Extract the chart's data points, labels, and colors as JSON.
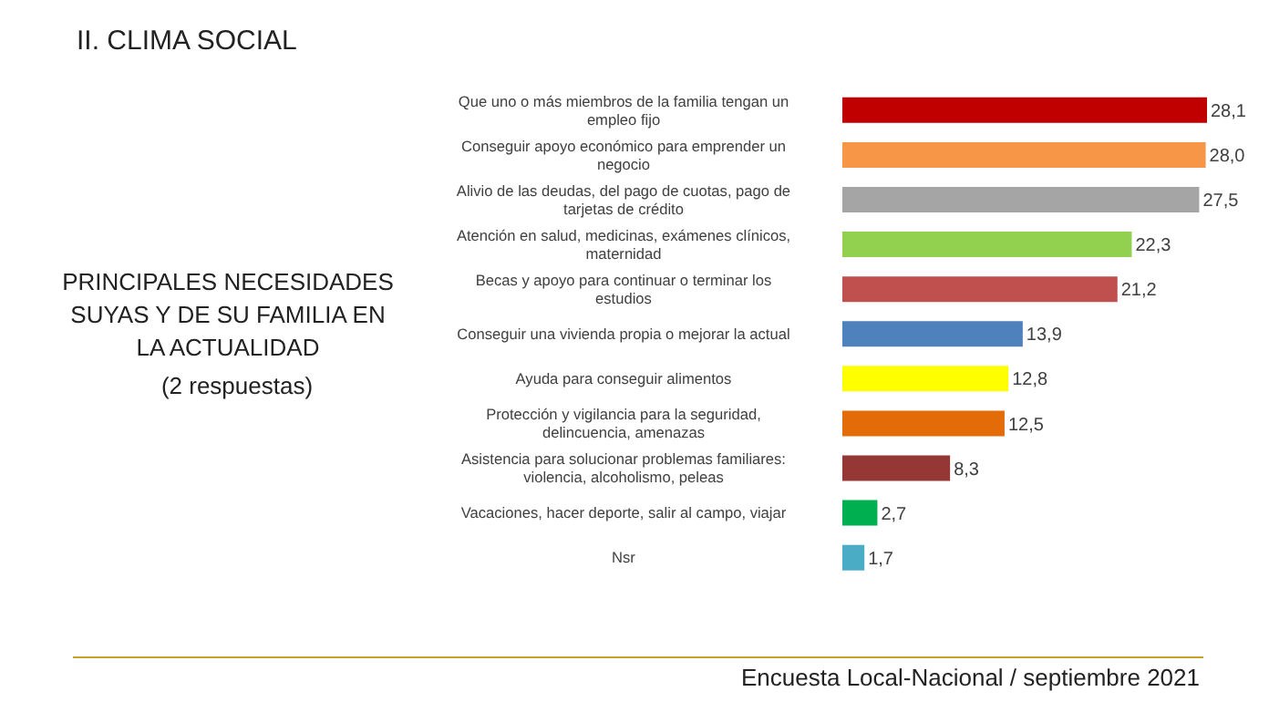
{
  "chart_data": {
    "type": "bar",
    "orientation": "horizontal",
    "title": "II. CLIMA SOCIAL",
    "subtitle": "PRINCIPALES NECESIDADES SUYAS Y DE SU FAMILIA EN LA ACTUALIDAD",
    "annotations": [
      "(2 respuestas)",
      "Encuesta Local-Nacional / septiembre 2021"
    ],
    "categories": [
      "Que uno o más miembros de la familia tengan un empleo fijo",
      "Conseguir apoyo económico para emprender un negocio",
      "Alivio de las deudas, del pago de cuotas, pago de tarjetas de crédito",
      "Atención en salud, medicinas, exámenes clínicos, maternidad",
      "Becas y apoyo para continuar o terminar los estudios",
      "Conseguir una vivienda propia o mejorar la actual",
      "Ayuda para conseguir alimentos",
      "Protección y vigilancia para la seguridad, delincuencia, amenazas",
      "Asistencia para solucionar problemas familiares: violencia, alcoholismo, peleas",
      "Vacaciones, hacer deporte, salir al campo, viajar",
      "Nsr"
    ],
    "values": [
      28.1,
      28.0,
      27.5,
      22.3,
      21.2,
      13.9,
      12.8,
      12.5,
      8.3,
      2.7,
      1.7
    ],
    "colors": [
      "#c00000",
      "#f79646",
      "#a5a5a5",
      "#92d050",
      "#c0504d",
      "#4f81bd",
      "#ffff00",
      "#e36c09",
      "#953735",
      "#00b050",
      "#4bacc6"
    ],
    "value_labels": [
      "28,1",
      "28,0",
      "27,5",
      "22,3",
      "21,2",
      "13,9",
      "12,8",
      "12,5",
      "8,3",
      "2,7",
      "1,7"
    ]
  }
}
